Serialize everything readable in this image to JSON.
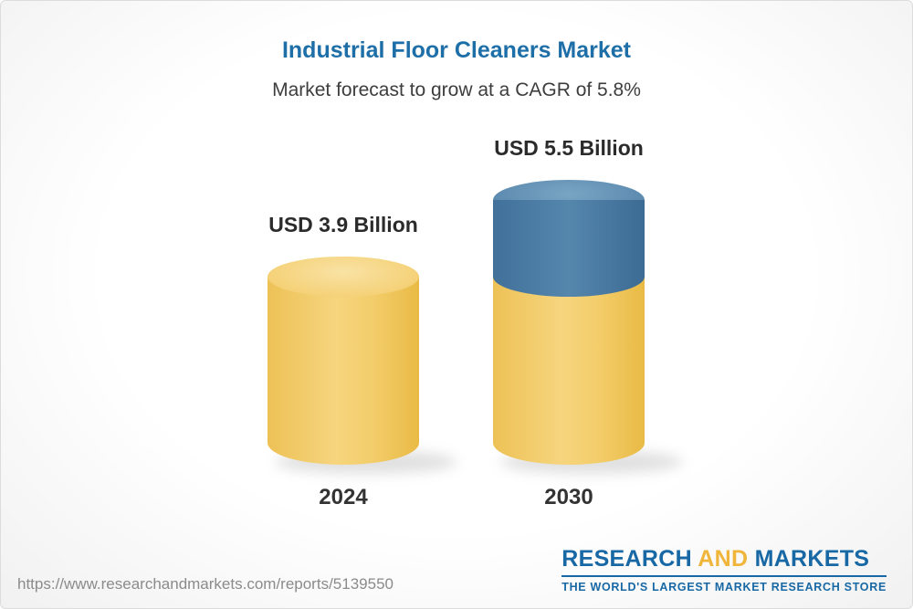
{
  "chart_data": {
    "type": "bar",
    "bar_style": "3d-cylinder",
    "title": "Industrial Floor Cleaners Market",
    "subtitle": "Market forecast to grow at a CAGR of 5.8%",
    "categories": [
      "2024",
      "2030"
    ],
    "values": [
      3.9,
      5.5
    ],
    "value_labels": [
      "USD 3.9 Billion",
      "USD 5.5 Billion"
    ],
    "unit": "USD Billion",
    "cagr_percent": 5.8,
    "ylim": [
      0,
      6
    ],
    "grid": false,
    "legend": "none",
    "colors": {
      "base_segment": "#f2c95e",
      "growth_segment": "#4a7da3",
      "title": "#1e6fa8"
    },
    "notes": "2030 cylinder shows the 2024 base value in gold with the incremental growth segment in blue on top"
  },
  "footer": {
    "url": "https://www.researchandmarkets.com/reports/5139550",
    "logo": {
      "research": "RESEARCH",
      "and": " AND ",
      "markets": "MARKETS",
      "tagline": "THE WORLD'S LARGEST MARKET RESEARCH STORE"
    }
  }
}
